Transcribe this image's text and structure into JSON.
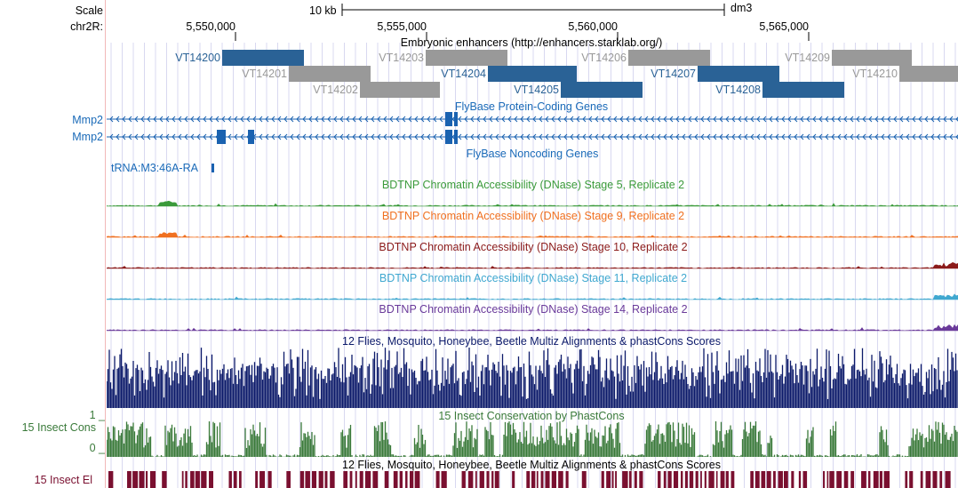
{
  "left_labels": {
    "scale": "Scale",
    "chrom": "chr2R:",
    "gene1": "Mmp2",
    "gene2": "Mmp2",
    "cons_track": "15 Insect Cons",
    "el_track": "15 Insect El",
    "cons_max": "1 _",
    "cons_min": "0 _"
  },
  "ruler": {
    "scale_text": "10 kb",
    "assembly": "dm3",
    "ticks": [
      "5,550,000",
      "5,555,000",
      "5,560,000",
      "5,565,000"
    ]
  },
  "tracks": {
    "enhancers_title": "Embryonic enhancers (http://enhancers.starklab.org/)",
    "protein_coding_title": "FlyBase Protein-Coding Genes",
    "noncoding_title": "FlyBase Noncoding Genes",
    "trna_label": "tRNA:M3:46A-RA",
    "dnase_stage5": "BDTNP Chromatin Accessibility (DNase) Stage 5, Replicate 2",
    "dnase_stage9": "BDTNP Chromatin Accessibility (DNase) Stage 9, Replicate 2",
    "dnase_stage10": "BDTNP Chromatin Accessibility (DNase) Stage 10, Replicate 2",
    "dnase_stage11": "BDTNP Chromatin Accessibility (DNase) Stage 11, Replicate 2",
    "dnase_stage14": "BDTNP Chromatin Accessibility (DNase) Stage 14, Replicate 2",
    "multiz_title": "12 Flies, Mosquito, Honeybee, Beetle Multiz Alignments & phastCons Scores",
    "phastcons_title": "15 Insect Conservation by PhastCons",
    "multiz_title_2": "12 Flies, Mosquito, Honeybee, Beetle Multiz Alignments & phastCons Scores"
  },
  "enhancers": [
    {
      "name": "VT14200",
      "active": true
    },
    {
      "name": "VT14201",
      "active": false
    },
    {
      "name": "VT14202",
      "active": false
    },
    {
      "name": "VT14203",
      "active": false
    },
    {
      "name": "VT14204",
      "active": true
    },
    {
      "name": "VT14205",
      "active": true
    },
    {
      "name": "VT14206",
      "active": false
    },
    {
      "name": "VT14207",
      "active": true
    },
    {
      "name": "VT14208",
      "active": true
    },
    {
      "name": "VT14209",
      "active": false
    },
    {
      "name": "VT14210",
      "active": false
    }
  ],
  "colors": {
    "active_enhancer": "#2a6296",
    "inactive_enhancer": "#999999",
    "gene": "#1a62b0",
    "gene_label": "#1a6ab8",
    "stage5": "#3a9a3a",
    "stage9": "#f07020",
    "stage10": "#8b1a1a",
    "stage11": "#40a8d0",
    "stage14": "#6a3a9a",
    "multiz": "#0c1a6a",
    "phastcons": "#3a7a3a",
    "elements": "#7a1030"
  }
}
